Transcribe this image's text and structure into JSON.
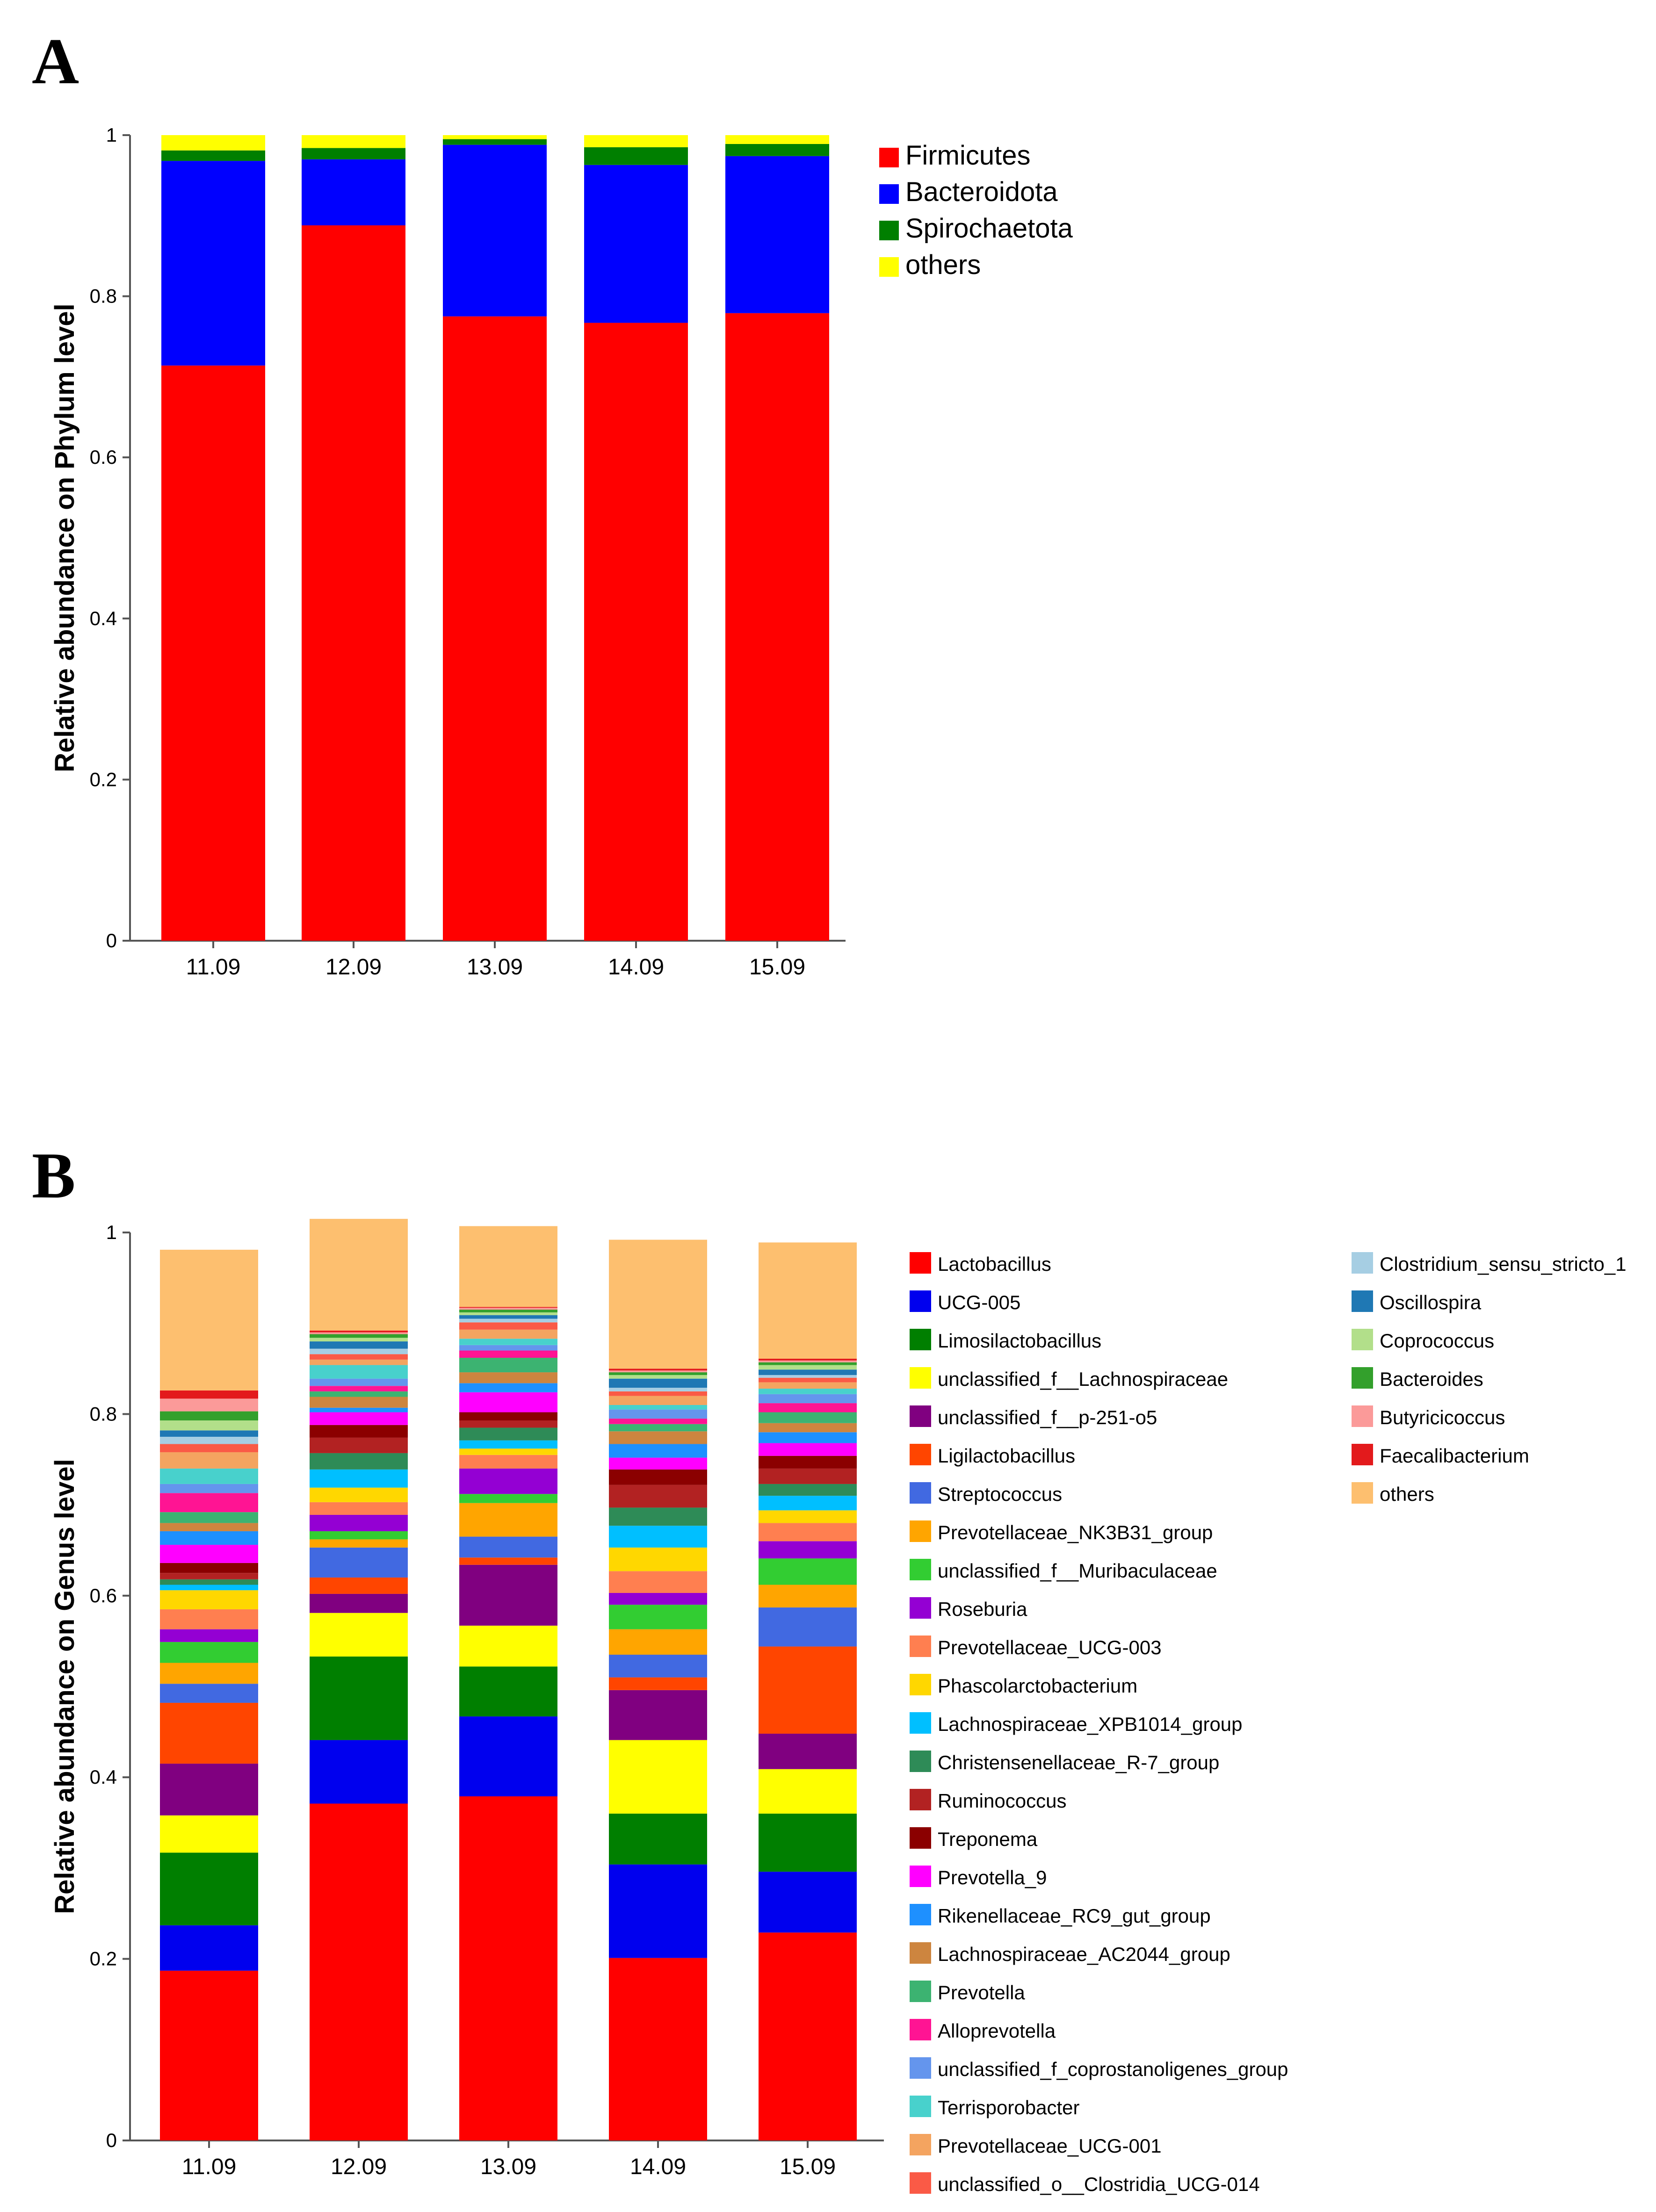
{
  "panels": {
    "a": {
      "letter": "A"
    },
    "b": {
      "letter": "B"
    }
  },
  "chart_data": [
    {
      "type": "bar",
      "stacked": true,
      "categories": [
        "11.09",
        "12.09",
        "13.09",
        "14.09",
        "15.09"
      ],
      "ylabel": "Relative abundance on Phylum level",
      "ylim": [
        0,
        1
      ],
      "yticks": [
        0,
        0.2,
        0.4,
        0.6,
        0.8,
        1
      ],
      "ytick_labels": [
        "0",
        "0.2",
        "0.4",
        "0.6",
        "0.8",
        "1"
      ],
      "series": [
        {
          "name": "Firmicutes",
          "color": "#ff0000",
          "values": [
            0.714,
            0.888,
            0.775,
            0.767,
            0.779
          ]
        },
        {
          "name": "Bacteroidota",
          "color": "#0000ff",
          "values": [
            0.254,
            0.082,
            0.213,
            0.196,
            0.195
          ]
        },
        {
          "name": "Spirochaetota",
          "color": "#007f00",
          "values": [
            0.013,
            0.014,
            0.007,
            0.022,
            0.015
          ]
        },
        {
          "name": "others",
          "color": "#ffff00",
          "values": [
            0.019,
            0.016,
            0.005,
            0.015,
            0.011
          ]
        }
      ]
    },
    {
      "type": "bar",
      "stacked": true,
      "categories": [
        "11.09",
        "12.09",
        "13.09",
        "14.09",
        "15.09"
      ],
      "ylabel": "Relative abundance on Genus level",
      "ylim": [
        0,
        1
      ],
      "yticks": [
        0,
        0.2,
        0.4,
        0.6,
        0.8,
        1
      ],
      "ytick_labels": [
        "0",
        "0.2",
        "0.4",
        "0.6",
        "0.8",
        "1"
      ],
      "series": [
        {
          "name": "Lactobacillus",
          "color": "#ff0000",
          "values": [
            0.187,
            0.371,
            0.379,
            0.201,
            0.229
          ]
        },
        {
          "name": "UCG-005",
          "color": "#0000ee",
          "values": [
            0.05,
            0.07,
            0.088,
            0.103,
            0.067
          ]
        },
        {
          "name": "Limosilactobacillus",
          "color": "#007f00",
          "values": [
            0.08,
            0.092,
            0.055,
            0.056,
            0.064
          ]
        },
        {
          "name": "unclassified_f__Lachnospiraceae",
          "color": "#ffff00",
          "values": [
            0.041,
            0.048,
            0.045,
            0.081,
            0.049
          ]
        },
        {
          "name": "unclassified_f__p-251-o5",
          "color": "#800080",
          "values": [
            0.057,
            0.021,
            0.067,
            0.055,
            0.039
          ]
        },
        {
          "name": "Ligilactobacillus",
          "color": "#ff4500",
          "values": [
            0.067,
            0.018,
            0.008,
            0.014,
            0.096
          ]
        },
        {
          "name": "Streptococcus",
          "color": "#4169e1",
          "values": [
            0.021,
            0.033,
            0.023,
            0.025,
            0.043
          ]
        },
        {
          "name": "Prevotellaceae_NK3B31_group",
          "color": "#ffa500",
          "values": [
            0.023,
            0.009,
            0.037,
            0.028,
            0.025
          ]
        },
        {
          "name": "unclassified_f__Muribaculaceae",
          "color": "#32cd32",
          "values": [
            0.023,
            0.009,
            0.01,
            0.027,
            0.029
          ]
        },
        {
          "name": "Roseburia",
          "color": "#9400d3",
          "values": [
            0.014,
            0.018,
            0.028,
            0.013,
            0.019
          ]
        },
        {
          "name": "Prevotellaceae_UCG-003",
          "color": "#ff7f50",
          "values": [
            0.022,
            0.014,
            0.015,
            0.024,
            0.02
          ]
        },
        {
          "name": "Phascolarctobacterium",
          "color": "#ffd700",
          "values": [
            0.021,
            0.016,
            0.007,
            0.026,
            0.014
          ]
        },
        {
          "name": "Lachnospiraceae_XPB1014_group",
          "color": "#00bfff",
          "values": [
            0.006,
            0.02,
            0.009,
            0.024,
            0.016
          ]
        },
        {
          "name": "Christensenellaceae_R-7_group",
          "color": "#2e8b57",
          "values": [
            0.006,
            0.018,
            0.014,
            0.02,
            0.013
          ]
        },
        {
          "name": "Ruminococcus",
          "color": "#b22222",
          "values": [
            0.007,
            0.017,
            0.008,
            0.025,
            0.017
          ]
        },
        {
          "name": "Treponema",
          "color": "#8b0000",
          "values": [
            0.011,
            0.014,
            0.009,
            0.017,
            0.014
          ]
        },
        {
          "name": "Prevotella_9",
          "color": "#ff00ff",
          "values": [
            0.02,
            0.014,
            0.022,
            0.013,
            0.014
          ]
        },
        {
          "name": "Rikenellaceae_RC9_gut_group",
          "color": "#1e90ff",
          "values": [
            0.015,
            0.005,
            0.01,
            0.015,
            0.012
          ]
        },
        {
          "name": "Lachnospiraceae_AC2044_group",
          "color": "#cd853f",
          "values": [
            0.009,
            0.012,
            0.012,
            0.014,
            0.01
          ]
        },
        {
          "name": "Prevotella",
          "color": "#3cb371",
          "values": [
            0.012,
            0.006,
            0.016,
            0.008,
            0.012
          ]
        },
        {
          "name": "Alloprevotella",
          "color": "#ff1493",
          "values": [
            0.021,
            0.006,
            0.008,
            0.006,
            0.01
          ]
        },
        {
          "name": "unclassified_f_coprostanoligenes_group",
          "color": "#6495ed",
          "values": [
            0.01,
            0.008,
            0.006,
            0.01,
            0.01
          ]
        },
        {
          "name": "Terrisporobacter",
          "color": "#48d1cc",
          "values": [
            0.017,
            0.015,
            0.007,
            0.005,
            0.006
          ]
        },
        {
          "name": "Prevotellaceae_UCG-001",
          "color": "#f4a460",
          "values": [
            0.018,
            0.006,
            0.01,
            0.01,
            0.007
          ]
        },
        {
          "name": "unclassified_o__Clostridia_UCG-014",
          "color": "#fa5a46",
          "values": [
            0.009,
            0.006,
            0.008,
            0.005,
            0.005
          ]
        },
        {
          "name": "Clostridium_sensu_stricto_1",
          "color": "#a6cee3",
          "values": [
            0.008,
            0.006,
            0.004,
            0.004,
            0.003
          ]
        },
        {
          "name": "Oscillospira",
          "color": "#1f78b4",
          "values": [
            0.007,
            0.008,
            0.004,
            0.01,
            0.006
          ]
        },
        {
          "name": "Coprococcus",
          "color": "#b2df8a",
          "values": [
            0.011,
            0.004,
            0.003,
            0.004,
            0.005
          ]
        },
        {
          "name": "Bacteroides",
          "color": "#33a02c",
          "values": [
            0.01,
            0.004,
            0.003,
            0.003,
            0.003
          ]
        },
        {
          "name": "Butyricicoccus",
          "color": "#fb9a99",
          "values": [
            0.014,
            0.002,
            0.002,
            0.002,
            0.002
          ]
        },
        {
          "name": "Faecalibacterium",
          "color": "#e31a1c",
          "values": [
            0.009,
            0.002,
            0.001,
            0.002,
            0.002
          ]
        },
        {
          "name": "others",
          "color": "#fdbf6f",
          "values": [
            0.155,
            0.123,
            0.089,
            0.142,
            0.128
          ]
        }
      ]
    }
  ]
}
